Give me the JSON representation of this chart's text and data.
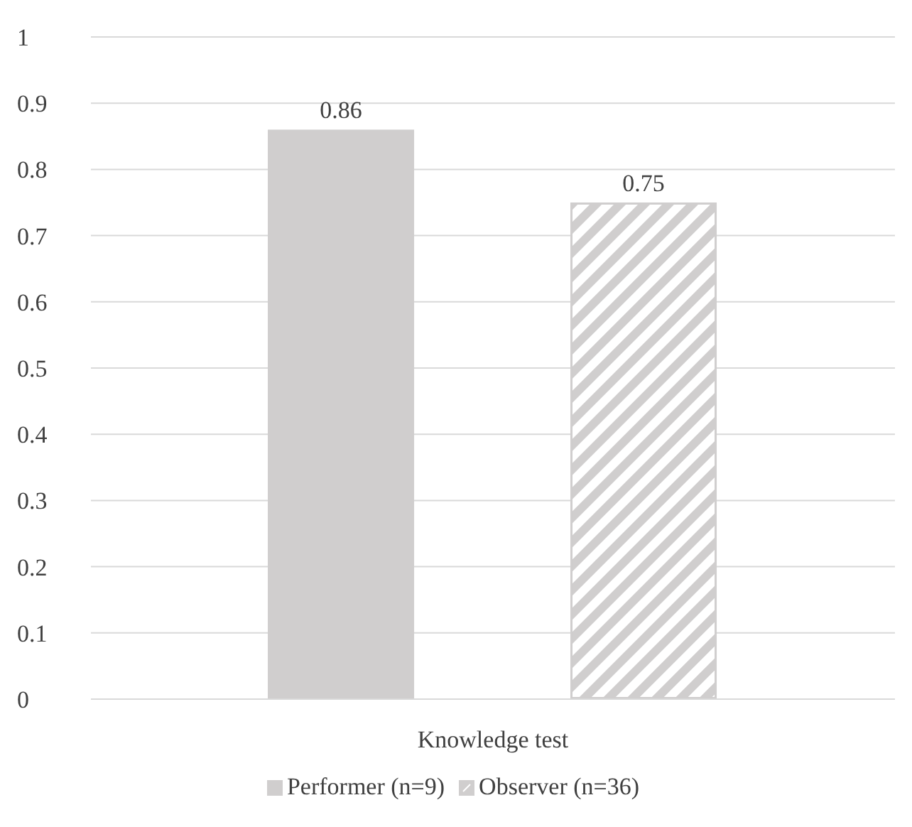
{
  "chart_data": {
    "type": "bar",
    "categories": [
      "Knowledge test"
    ],
    "series": [
      {
        "name": "Performer (n=9)",
        "color": "#d0cece",
        "values": [
          0.86
        ]
      },
      {
        "name": "Observer (n=36)",
        "color": "#d0cece",
        "values": [
          0.75
        ]
      }
    ],
    "ylim": [
      0,
      1
    ],
    "yticks": [
      0,
      0.1,
      0.2,
      0.3,
      0.4,
      0.5,
      0.6,
      0.7,
      0.8,
      0.9,
      1
    ],
    "grid": "y",
    "legend": "bottom",
    "data_labels": true
  }
}
